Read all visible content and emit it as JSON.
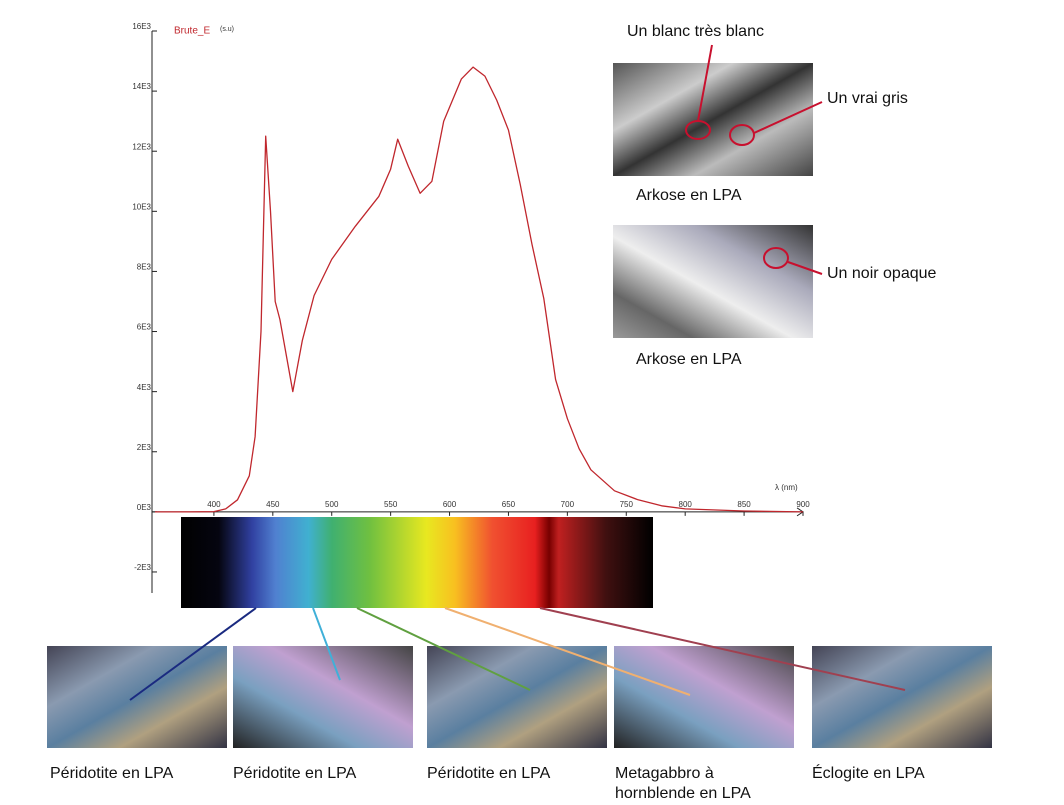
{
  "chart_data": {
    "type": "line",
    "series": [
      {
        "name": "Brute_E",
        "color": "#c0272d",
        "values": [
          0,
          0,
          10,
          100,
          400,
          1200,
          2500,
          6000,
          12500,
          10000,
          7000,
          6400,
          4000,
          5700,
          7200,
          8400,
          9500,
          10500,
          11400,
          12400,
          11500,
          10600,
          11000,
          13000,
          14400,
          14800,
          14500,
          13700,
          12700,
          10900,
          8900,
          7100,
          4400,
          3100,
          2100,
          1400,
          700,
          400,
          200,
          100,
          30,
          0
        ]
      }
    ],
    "x": [
      350,
      380,
      400,
      410,
      420,
      430,
      435,
      440,
      444,
      448,
      452,
      456,
      467,
      475,
      485,
      500,
      520,
      540,
      550,
      556,
      565,
      575,
      585,
      595,
      610,
      620,
      630,
      640,
      650,
      660,
      670,
      680,
      690,
      700,
      710,
      720,
      740,
      760,
      780,
      800,
      850,
      900
    ],
    "y_unit": "(s.u)",
    "x_label": "λ (nm)",
    "xlim": [
      350,
      900
    ],
    "xticks": [
      400,
      450,
      500,
      550,
      600,
      650,
      700,
      750,
      800,
      850,
      900
    ],
    "ylim": [
      -2700,
      16000
    ],
    "yticks": [
      {
        "value": -2000,
        "label": "-2E3"
      },
      {
        "value": 0,
        "label": "0E3"
      },
      {
        "value": 2000,
        "label": "2E3"
      },
      {
        "value": 4000,
        "label": "4E3"
      },
      {
        "value": 6000,
        "label": "6E3"
      },
      {
        "value": 8000,
        "label": "8E3"
      },
      {
        "value": 10000,
        "label": "10E3"
      },
      {
        "value": 12000,
        "label": "12E3"
      },
      {
        "value": 14000,
        "label": "14E3"
      },
      {
        "value": 16000,
        "label": "16E3"
      }
    ],
    "grid": false,
    "annotations": [
      "Un blanc très blanc",
      "Un vrai gris",
      "Un noir opaque",
      "Arkose en LPA",
      "Arkose en LPA",
      "Péridotite en LPA",
      "Péridotite en LPA",
      "Péridotite en LPA",
      "Metagabbro à hornblende en LPA",
      "Éclogite en LPA"
    ]
  }
}
